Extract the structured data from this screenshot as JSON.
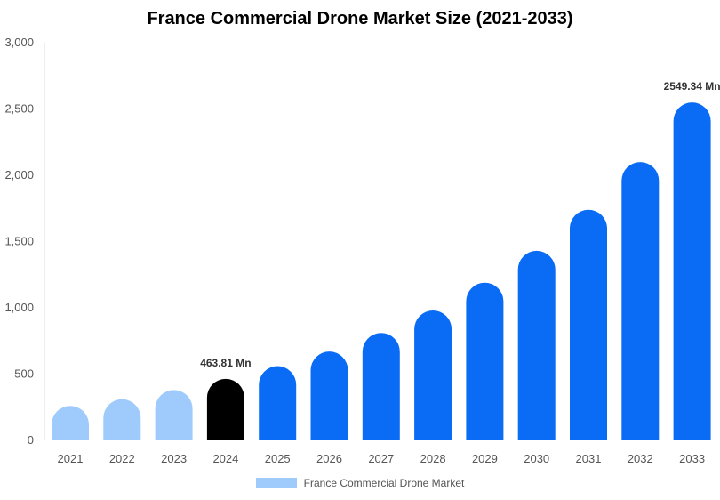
{
  "chart_data": {
    "type": "bar",
    "title": "France Commercial Drone Market Size (2021-2033)",
    "xlabel": "",
    "ylabel": "",
    "categories": [
      "2021",
      "2022",
      "2023",
      "2024",
      "2025",
      "2026",
      "2027",
      "2028",
      "2029",
      "2030",
      "2031",
      "2032",
      "2033"
    ],
    "series": [
      {
        "name": "France Commercial Drone Market",
        "values": [
          260,
          310,
          380,
          463.81,
          560,
          670,
          810,
          980,
          1190,
          1430,
          1740,
          2100,
          2549.34
        ]
      }
    ],
    "ylim": [
      0,
      3000
    ],
    "yticks": [
      "0",
      "500",
      "1,000",
      "1,500",
      "2,000",
      "2,500",
      "3,000"
    ],
    "data_labels": [
      {
        "category": "2024",
        "text": "463.81 Mn"
      },
      {
        "category": "2033",
        "text": "2549.34 Mn"
      }
    ],
    "bar_colors": {
      "historical": "#9ecbfb",
      "base_year": "#000000",
      "forecast": "#0a6cf5"
    },
    "grid": false,
    "legend_position": "bottom"
  }
}
